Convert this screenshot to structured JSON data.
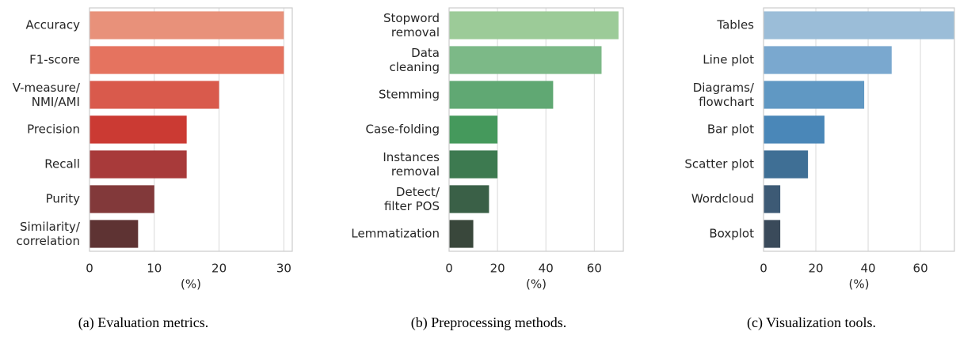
{
  "chart_data": [
    {
      "type": "bar",
      "orientation": "horizontal",
      "caption": "(a) Evaluation metrics.",
      "xlabel": "(%)",
      "categories": [
        "Accuracy",
        "F1-score",
        "V-measure/\nNMI/AMI",
        "Precision",
        "Recall",
        "Purity",
        "Similarity/\ncorrelation"
      ],
      "values": [
        30,
        30,
        20,
        15,
        15,
        10,
        7.5
      ],
      "colors": [
        "#e8917a",
        "#e5735f",
        "#d95a4c",
        "#cb3a33",
        "#a83a3a",
        "#82393a",
        "#5e3333"
      ],
      "xlim": [
        0,
        31.3
      ],
      "xticks": [
        0,
        10,
        20,
        30
      ],
      "grid": true
    },
    {
      "type": "bar",
      "orientation": "horizontal",
      "caption": "(b) Preprocessing methods.",
      "xlabel": "(%)",
      "categories": [
        "Stopword\nremoval",
        "Data\ncleaning",
        "Stemming",
        "Case-folding",
        "Instances\nremoval",
        "Detect/\nfilter POS",
        "Lemmatization"
      ],
      "values": [
        70,
        63,
        43,
        20,
        20,
        16.5,
        10
      ],
      "colors": [
        "#9ccb98",
        "#7cb987",
        "#60a873",
        "#45995c",
        "#3d7a50",
        "#3a6047",
        "#39473b"
      ],
      "xlim": [
        0,
        72
      ],
      "xticks": [
        0,
        20,
        40,
        60
      ],
      "grid": true
    },
    {
      "type": "bar",
      "orientation": "horizontal",
      "caption": "(c) Visualization tools.",
      "xlabel": "(%)",
      "categories": [
        "Tables",
        "Line plot",
        "Diagrams/\nflowchart",
        "Bar plot",
        "Scatter plot",
        "Wordcloud",
        "Boxplot"
      ],
      "values": [
        73,
        49,
        38.5,
        23.3,
        17,
        6.4,
        6.4
      ],
      "colors": [
        "#9bbdd8",
        "#7aa8cf",
        "#6098c3",
        "#4a87b8",
        "#3f6f95",
        "#3d5a75",
        "#3a4a5a"
      ],
      "xlim": [
        0,
        73
      ],
      "xticks": [
        0,
        20,
        40,
        60
      ],
      "grid": true
    }
  ]
}
